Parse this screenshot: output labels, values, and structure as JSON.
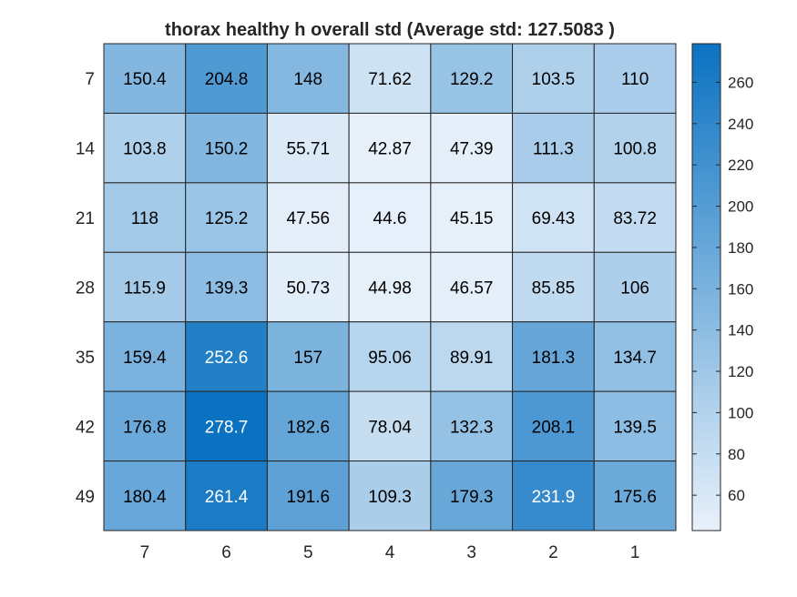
{
  "chart_data": {
    "type": "heatmap",
    "title": "thorax healthy h overall std (Average std: 127.5083 )",
    "x_categories": [
      "7",
      "6",
      "5",
      "4",
      "3",
      "2",
      "1"
    ],
    "y_categories": [
      "7",
      "14",
      "21",
      "28",
      "35",
      "42",
      "49"
    ],
    "values": [
      [
        150.4,
        204.8,
        148,
        71.62,
        129.2,
        103.5,
        110
      ],
      [
        103.8,
        150.2,
        55.71,
        42.87,
        47.39,
        111.3,
        100.8
      ],
      [
        118,
        125.2,
        47.56,
        44.6,
        45.15,
        69.43,
        83.72
      ],
      [
        115.9,
        139.3,
        50.73,
        44.98,
        46.57,
        85.85,
        106
      ],
      [
        159.4,
        252.6,
        157,
        95.06,
        89.91,
        181.3,
        134.7
      ],
      [
        176.8,
        278.7,
        182.6,
        78.04,
        132.3,
        208.1,
        139.5
      ],
      [
        180.4,
        261.4,
        191.6,
        109.3,
        179.3,
        231.9,
        175.6
      ]
    ],
    "cell_labels": [
      [
        "150.4",
        "204.8",
        "148",
        "71.62",
        "129.2",
        "103.5",
        "110"
      ],
      [
        "103.8",
        "150.2",
        "55.71",
        "42.87",
        "47.39",
        "111.3",
        "100.8"
      ],
      [
        "118",
        "125.2",
        "47.56",
        "44.6",
        "45.15",
        "69.43",
        "83.72"
      ],
      [
        "115.9",
        "139.3",
        "50.73",
        "44.98",
        "46.57",
        "85.85",
        "106"
      ],
      [
        "159.4",
        "252.6",
        "157",
        "95.06",
        "89.91",
        "181.3",
        "134.7"
      ],
      [
        "176.8",
        "278.7",
        "182.6",
        "78.04",
        "132.3",
        "208.1",
        "139.5"
      ],
      [
        "180.4",
        "261.4",
        "191.6",
        "109.3",
        "179.3",
        "231.9",
        "175.6"
      ]
    ],
    "colorbar": {
      "ticks": [
        60,
        80,
        100,
        120,
        140,
        160,
        180,
        200,
        220,
        240,
        260
      ],
      "range": [
        42.87,
        278.7
      ],
      "color_low": "#e8f1fa",
      "color_high": "#0b72c1"
    },
    "white_text_threshold": 220,
    "grid": true,
    "legend": "none"
  }
}
